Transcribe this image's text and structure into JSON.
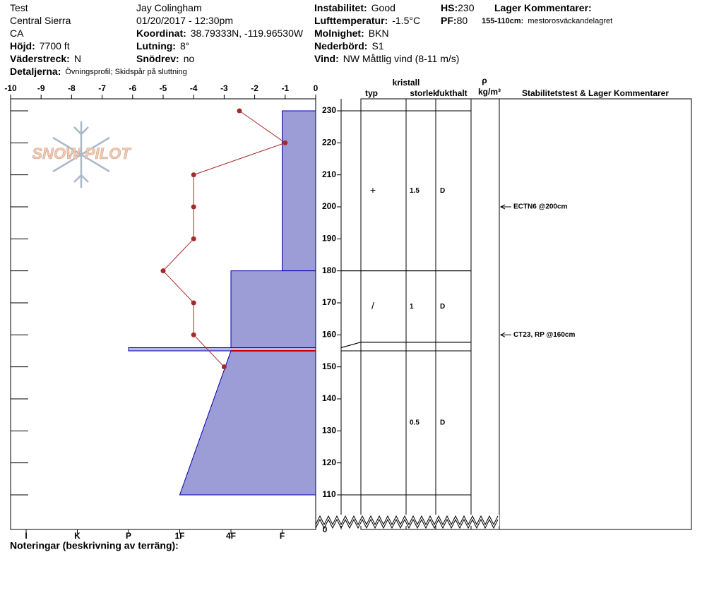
{
  "fields": [
    {
      "value": "Test"
    },
    {
      "value": "Central Sierra"
    },
    {
      "value": "CA"
    },
    {
      "label": "Höjd:",
      "value": "7700 ft"
    },
    {
      "label": "Väderstreck:",
      "value": "N"
    },
    {
      "label": "Detaljerna:",
      "value": "Övningsprofil;  Skidspår på sluttning"
    },
    {
      "value": "Jay Colingham"
    },
    {
      "value": "01/20/2017 - 12:30pm"
    },
    {
      "label": "Koordinat:",
      "value": "38.79333N, -119.96530W"
    },
    {
      "label": "Lutning:",
      "value": "8°"
    },
    {
      "label": "Snödrev:",
      "value": "no"
    },
    {
      "label": "Instabilitet:",
      "value": "Good"
    },
    {
      "label": "Lufttemperatur:",
      "value": "-1.5°C"
    },
    {
      "label": "Molnighet:",
      "value": "BKN"
    },
    {
      "label": "Nederbörd:",
      "value": "S1"
    },
    {
      "label": "Vind:",
      "value": "NW Måttlig vind (8-11 m/s)"
    },
    {
      "label": "HS:",
      "value": 230
    },
    {
      "label": "PF:",
      "value": 80
    },
    {
      "label": "Lager Kommentarer:"
    },
    {
      "label": "155-110cm:",
      "value": "mestorosväckandelagret"
    }
  ],
  "logo": "SNOW PILOT",
  "notes_label": "Noteringar (beskrivning av terräng):",
  "chart_data": {
    "type": "line",
    "xlim": [
      -10,
      0
    ],
    "xticks": [
      -10,
      -9,
      -8,
      -7,
      -6,
      -5,
      -4,
      -3,
      -2,
      -1,
      0
    ],
    "ylim": [
      110,
      230
    ],
    "yticks": [
      230,
      220,
      210,
      200,
      190,
      180,
      170,
      160,
      150,
      140,
      130,
      120,
      110
    ],
    "ybreak_label": 0,
    "hardness_ticks": [
      "I",
      "K",
      "P",
      "1F",
      "4F",
      "F"
    ],
    "temperature": {
      "color": "#a52a2a",
      "heights": [
        230,
        220,
        210,
        200,
        190,
        180,
        170,
        160,
        150
      ],
      "values": [
        -2.5,
        -1,
        -4,
        -4,
        -4,
        -5,
        -4,
        -4,
        -3
      ]
    },
    "hardness_color": "#9c9cd6",
    "concern_color": "#cc0000",
    "concern_layer": 3,
    "layers": [
      {
        "top": 230,
        "bottom": 180,
        "hardness_top": "F",
        "hardness_bottom": "F",
        "grain": "+",
        "size": 1.5,
        "moisture": "D"
      },
      {
        "top": 180,
        "bottom": 156,
        "hardness_top": "4F",
        "hardness_bottom": "4F",
        "grain": "/",
        "size": 1,
        "moisture": "D"
      },
      {
        "top": 156,
        "bottom": 155,
        "hardness_top": "P",
        "hardness_bottom": "P"
      },
      {
        "top": 155,
        "bottom": 110,
        "hardness_top": "4F",
        "hardness_bottom": "1F",
        "size": 0.5,
        "moisture": "D"
      }
    ],
    "table_headers": {
      "crystal": "kristall",
      "type": "typ",
      "size": "storlek",
      "moisture": "fukthalt",
      "density": "ρ",
      "density_unit": "kg/m³",
      "comments": "Stabilitetstest & Lager Kommentarer"
    },
    "stability_tests": [
      {
        "label": "ECTN6 @200cm",
        "height": 200
      },
      {
        "label": "CT23, RP @160cm",
        "height": 160
      }
    ]
  }
}
